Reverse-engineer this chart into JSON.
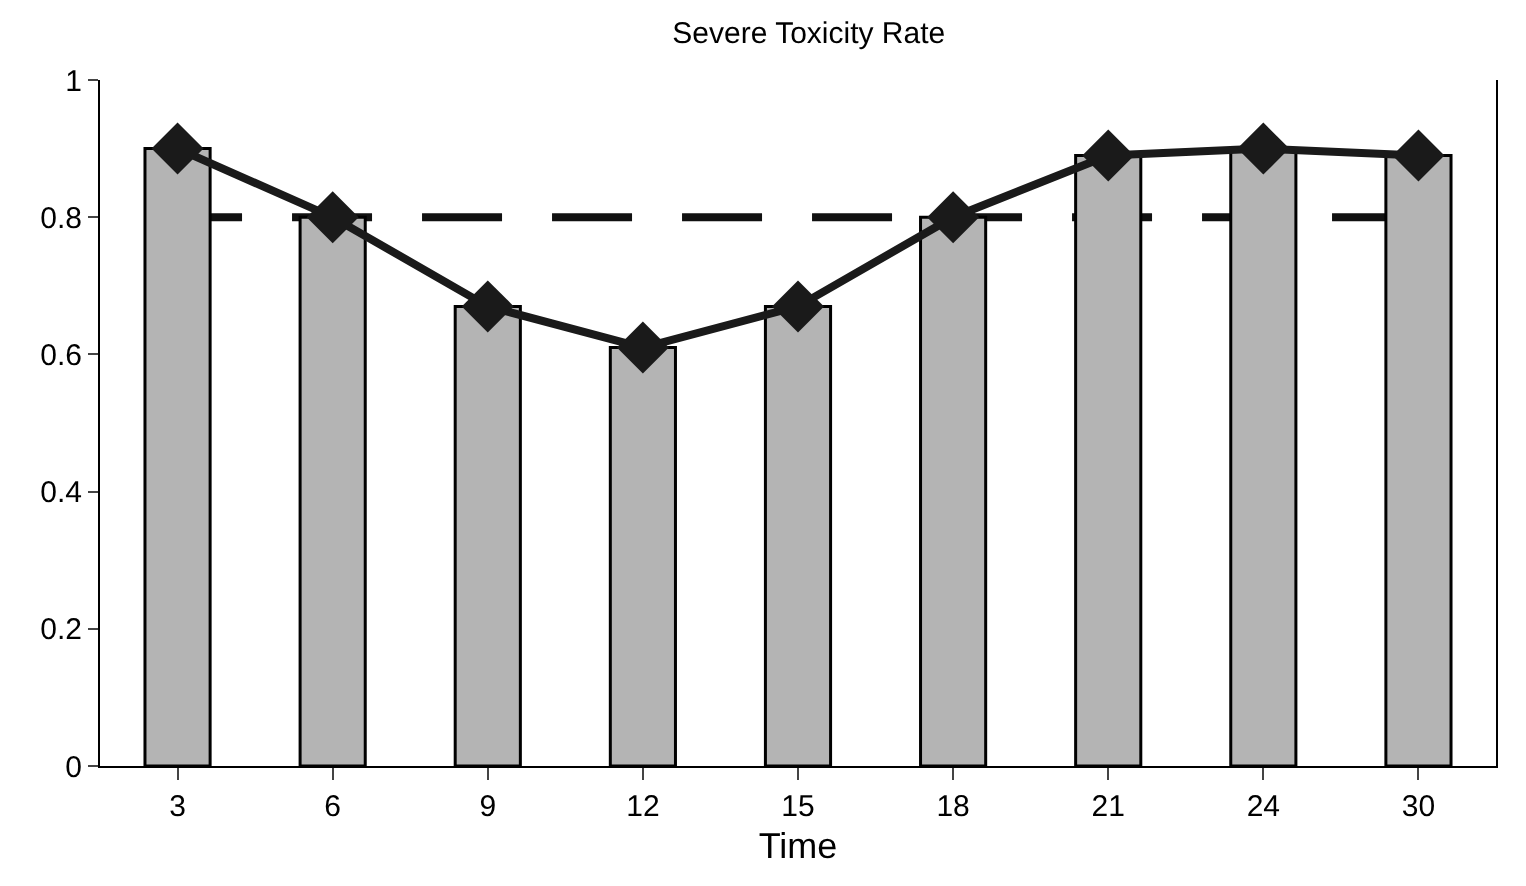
{
  "chart_data": {
    "type": "bar",
    "title": "Severe Toxicity Rate",
    "xlabel": "Time",
    "categories": [
      "3",
      "6",
      "9",
      "12",
      "15",
      "18",
      "21",
      "24",
      "30"
    ],
    "series": [
      {
        "color": "#b4b4b4",
        "values": [
          0.9,
          0.8,
          0.67,
          0.61,
          0.67,
          0.8,
          0.89,
          0.9,
          0.89
        ]
      },
      {
        "type": "line",
        "color": "#1a1a1a",
        "marker": "diamond",
        "values": [
          0.9,
          0.8,
          0.67,
          0.61,
          0.67,
          0.8,
          0.89,
          0.9,
          0.89
        ]
      }
    ],
    "ylim": [
      0,
      1
    ],
    "yticks": [
      0,
      0.2,
      0.4,
      0.6,
      0.8,
      1
    ],
    "ref_lines": [
      {
        "axis": "y",
        "value": 0.8,
        "color": "#111111",
        "line_style": "dashed"
      }
    ],
    "grid": false
  }
}
